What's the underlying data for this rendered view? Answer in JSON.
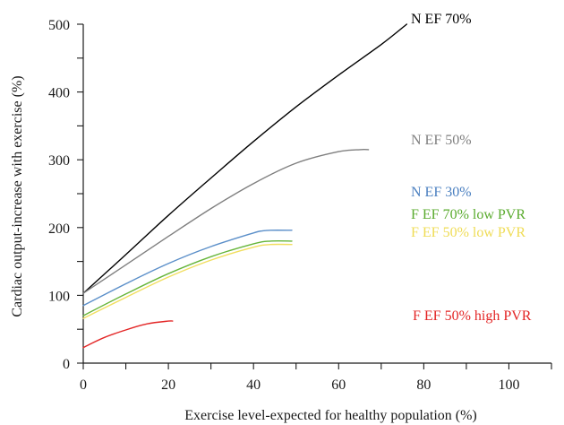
{
  "chart_data": {
    "type": "line",
    "title": "",
    "xlabel": "Exercise level-expected for healthy population (%)",
    "ylabel": "Cardiac output-increase with exercise (%)",
    "xlim": [
      0,
      110
    ],
    "ylim": [
      0,
      500
    ],
    "xticks": [
      0,
      20,
      40,
      60,
      80,
      100
    ],
    "yticks": [
      0,
      100,
      200,
      300,
      400,
      500
    ],
    "grid": false,
    "legend": "inline labels at right of each curve",
    "series": [
      {
        "name": "N EF 70%",
        "color": "#000000",
        "label_color": "#000000",
        "x": [
          0,
          10,
          20,
          30,
          40,
          50,
          60,
          70,
          76
        ],
        "y": [
          103,
          160,
          218,
          273,
          327,
          378,
          425,
          470,
          500
        ]
      },
      {
        "name": "N EF 50%",
        "color": "#7f7f7f",
        "label_color": "#7f7f7f",
        "x": [
          0,
          10,
          20,
          30,
          40,
          50,
          60,
          65,
          67
        ],
        "y": [
          103,
          145,
          187,
          228,
          265,
          295,
          312,
          315,
          315
        ]
      },
      {
        "name": "N EF 30%",
        "color": "#5b8fc9",
        "label_color": "#4a7fc0",
        "x": [
          0,
          10,
          20,
          30,
          40,
          42,
          44,
          49
        ],
        "y": [
          85,
          117,
          147,
          172,
          192,
          195,
          196,
          196
        ]
      },
      {
        "name": "F EF 70% low PVR",
        "color": "#66b53a",
        "label_color": "#5aab2e",
        "x": [
          0,
          10,
          20,
          30,
          40,
          44,
          49
        ],
        "y": [
          70,
          102,
          132,
          157,
          176,
          180,
          180
        ]
      },
      {
        "name": "F EF 50% low PVR",
        "color": "#f1de5f",
        "label_color": "#efdc55",
        "x": [
          0,
          10,
          20,
          30,
          40,
          44,
          49
        ],
        "y": [
          66,
          97,
          127,
          152,
          171,
          175,
          175
        ]
      },
      {
        "name": "F EF 50% high PVR",
        "color": "#e32626",
        "label_color": "#e32626",
        "x": [
          0,
          5,
          10,
          15,
          20,
          21
        ],
        "y": [
          23,
          38,
          49,
          58,
          62,
          62
        ]
      }
    ]
  }
}
